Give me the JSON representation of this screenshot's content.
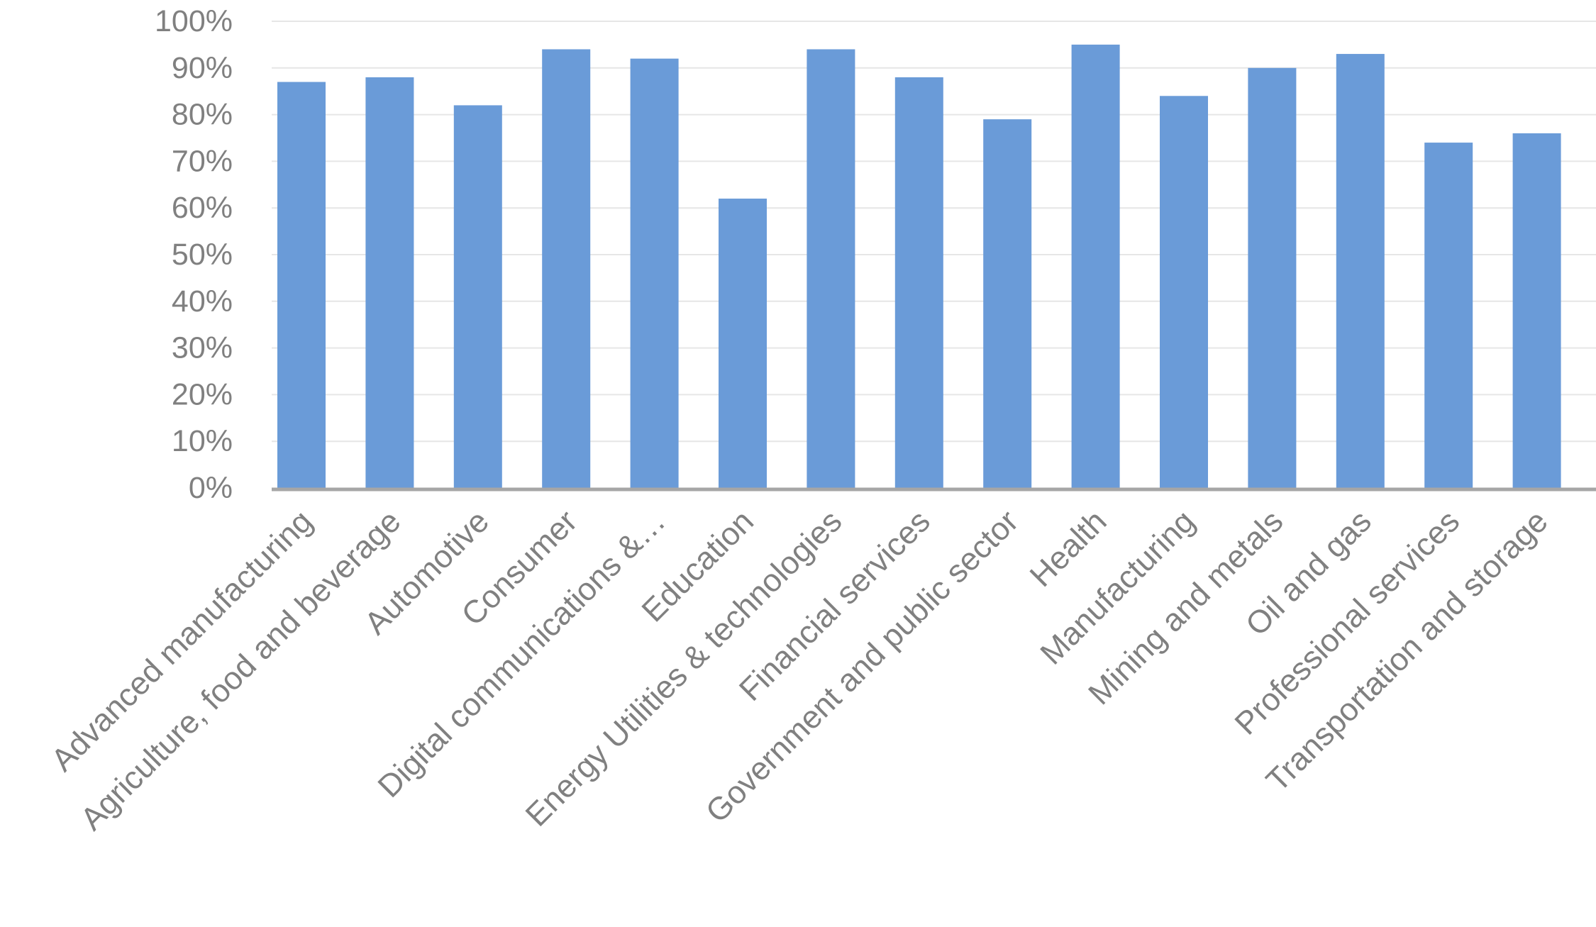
{
  "chart_data": {
    "type": "bar",
    "title": "",
    "xlabel": "",
    "ylabel": "",
    "categories": [
      "Advanced manufacturing",
      "Agriculture, food and beverage",
      "Automotive",
      "Consumer",
      "Digital communications &…",
      "Education",
      "Energy Utilities & technologies",
      "Financial services",
      "Government and public sector",
      "Health",
      "Manufacturing",
      "Mining and metals",
      "Oil and gas",
      "Professional services",
      "Transportation and storage"
    ],
    "values": [
      87,
      88,
      82,
      94,
      92,
      62,
      94,
      88,
      79,
      95,
      84,
      90,
      93,
      74,
      76
    ],
    "ylim": [
      0,
      100
    ],
    "yticks": [
      0,
      10,
      20,
      30,
      40,
      50,
      60,
      70,
      80,
      90,
      100
    ],
    "ytick_labels": [
      "0%",
      "10%",
      "20%",
      "30%",
      "40%",
      "50%",
      "60%",
      "70%",
      "80%",
      "90%",
      "100%"
    ],
    "grid": true,
    "legend": "none",
    "colors": {
      "bar": "#6a9bd8",
      "grid": "#e6e6e6",
      "axis": "#a6a6a6",
      "text": "#808080"
    }
  }
}
